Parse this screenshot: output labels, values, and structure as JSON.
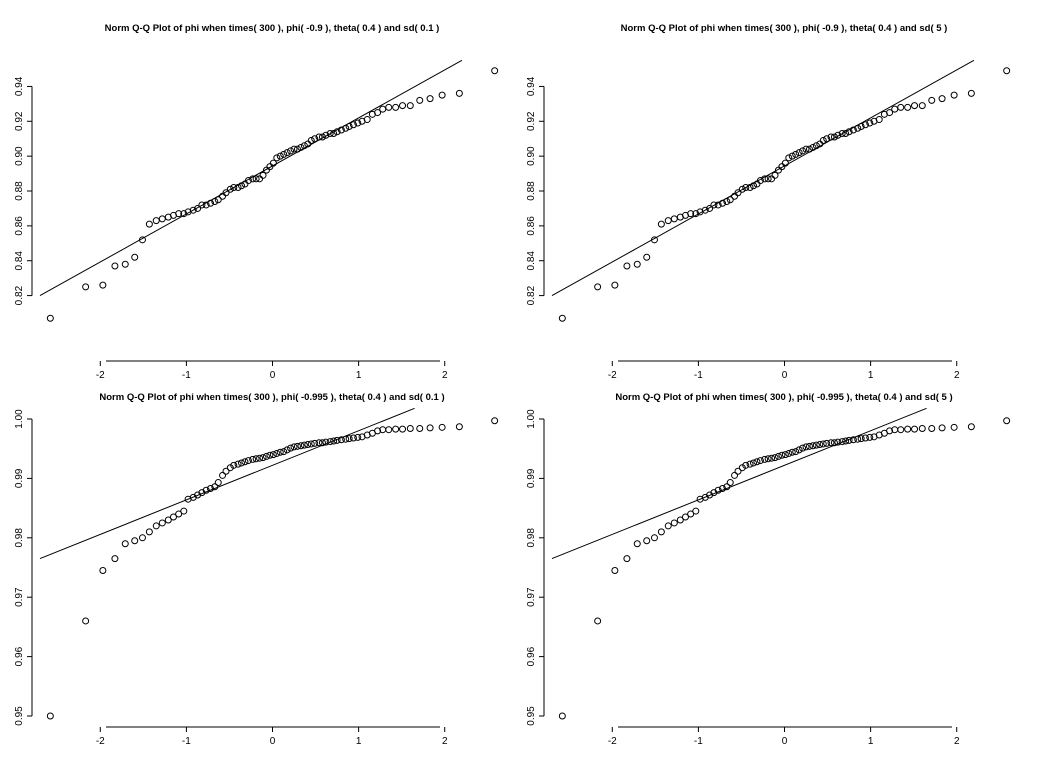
{
  "chart_data": [
    {
      "type": "scatter",
      "title": "Norm Q-Q Plot of phi when times( 300 ), phi( -0.9 ), theta( 0.4 ) and sd( 0.1 )",
      "xlabel": "",
      "ylabel": "",
      "xlim": [
        -2.7,
        2.7
      ],
      "ylim": [
        0.806,
        0.95
      ],
      "x_ticks": [
        -2,
        -1,
        0,
        1,
        2
      ],
      "y_ticks": [
        0.82,
        0.84,
        0.86,
        0.88,
        0.9,
        0.92,
        0.94
      ],
      "y_tick_labels": [
        "0.82",
        "0.84",
        "0.86",
        "0.88",
        "0.90",
        "0.92",
        "0.94"
      ],
      "reference_line": [
        [
          -2.7,
          0.82
        ],
        [
          2.2,
          0.955
        ]
      ],
      "points": [
        [
          -2.58,
          0.807
        ],
        [
          -2.17,
          0.825
        ],
        [
          -1.97,
          0.826
        ],
        [
          -1.83,
          0.837
        ],
        [
          -1.71,
          0.838
        ],
        [
          -1.6,
          0.842
        ],
        [
          -1.51,
          0.852
        ],
        [
          -1.43,
          0.861
        ],
        [
          -1.35,
          0.863
        ],
        [
          -1.28,
          0.864
        ],
        [
          -1.21,
          0.865
        ],
        [
          -1.15,
          0.866
        ],
        [
          -1.09,
          0.867
        ],
        [
          -1.03,
          0.867
        ],
        [
          -0.98,
          0.868
        ],
        [
          -0.92,
          0.869
        ],
        [
          -0.87,
          0.87
        ],
        [
          -0.82,
          0.872
        ],
        [
          -0.77,
          0.872
        ],
        [
          -0.72,
          0.873
        ],
        [
          -0.67,
          0.874
        ],
        [
          -0.63,
          0.875
        ],
        [
          -0.58,
          0.877
        ],
        [
          -0.54,
          0.879
        ],
        [
          -0.49,
          0.881
        ],
        [
          -0.45,
          0.882
        ],
        [
          -0.4,
          0.882
        ],
        [
          -0.36,
          0.883
        ],
        [
          -0.32,
          0.884
        ],
        [
          -0.28,
          0.886
        ],
        [
          -0.23,
          0.887
        ],
        [
          -0.19,
          0.887
        ],
        [
          -0.15,
          0.887
        ],
        [
          -0.11,
          0.889
        ],
        [
          -0.07,
          0.892
        ],
        [
          -0.03,
          0.894
        ],
        [
          0.01,
          0.896
        ],
        [
          0.05,
          0.899
        ],
        [
          0.09,
          0.9
        ],
        [
          0.13,
          0.901
        ],
        [
          0.17,
          0.902
        ],
        [
          0.21,
          0.903
        ],
        [
          0.25,
          0.904
        ],
        [
          0.29,
          0.904
        ],
        [
          0.33,
          0.905
        ],
        [
          0.37,
          0.906
        ],
        [
          0.41,
          0.907
        ],
        [
          0.45,
          0.909
        ],
        [
          0.49,
          0.91
        ],
        [
          0.54,
          0.911
        ],
        [
          0.58,
          0.911
        ],
        [
          0.62,
          0.912
        ],
        [
          0.67,
          0.913
        ],
        [
          0.71,
          0.913
        ],
        [
          0.75,
          0.914
        ],
        [
          0.8,
          0.915
        ],
        [
          0.85,
          0.916
        ],
        [
          0.89,
          0.917
        ],
        [
          0.94,
          0.918
        ],
        [
          0.99,
          0.919
        ],
        [
          1.04,
          0.92
        ],
        [
          1.1,
          0.921
        ],
        [
          1.16,
          0.924
        ],
        [
          1.22,
          0.925
        ],
        [
          1.28,
          0.927
        ],
        [
          1.35,
          0.928
        ],
        [
          1.43,
          0.928
        ],
        [
          1.51,
          0.929
        ],
        [
          1.6,
          0.929
        ],
        [
          1.71,
          0.932
        ],
        [
          1.83,
          0.933
        ],
        [
          1.97,
          0.935
        ],
        [
          2.17,
          0.936
        ],
        [
          2.58,
          0.949
        ]
      ]
    },
    {
      "type": "scatter",
      "title": "Norm Q-Q Plot of phi when times( 300 ), phi( -0.9 ), theta( 0.4 ) and sd( 5 )",
      "xlabel": "",
      "ylabel": "",
      "xlim": [
        -2.7,
        2.7
      ],
      "ylim": [
        0.806,
        0.95
      ],
      "x_ticks": [
        -2,
        -1,
        0,
        1,
        2
      ],
      "y_ticks": [
        0.82,
        0.84,
        0.86,
        0.88,
        0.9,
        0.92,
        0.94
      ],
      "y_tick_labels": [
        "0.82",
        "0.84",
        "0.86",
        "0.88",
        "0.90",
        "0.92",
        "0.94"
      ],
      "reference_line": [
        [
          -2.7,
          0.82
        ],
        [
          2.2,
          0.955
        ]
      ],
      "points": [
        [
          -2.58,
          0.807
        ],
        [
          -2.17,
          0.825
        ],
        [
          -1.97,
          0.826
        ],
        [
          -1.83,
          0.837
        ],
        [
          -1.71,
          0.838
        ],
        [
          -1.6,
          0.842
        ],
        [
          -1.51,
          0.852
        ],
        [
          -1.43,
          0.861
        ],
        [
          -1.35,
          0.863
        ],
        [
          -1.28,
          0.864
        ],
        [
          -1.21,
          0.865
        ],
        [
          -1.15,
          0.866
        ],
        [
          -1.09,
          0.867
        ],
        [
          -1.03,
          0.867
        ],
        [
          -0.98,
          0.868
        ],
        [
          -0.92,
          0.869
        ],
        [
          -0.87,
          0.87
        ],
        [
          -0.82,
          0.872
        ],
        [
          -0.77,
          0.872
        ],
        [
          -0.72,
          0.873
        ],
        [
          -0.67,
          0.874
        ],
        [
          -0.63,
          0.875
        ],
        [
          -0.58,
          0.877
        ],
        [
          -0.54,
          0.879
        ],
        [
          -0.49,
          0.881
        ],
        [
          -0.45,
          0.882
        ],
        [
          -0.4,
          0.882
        ],
        [
          -0.36,
          0.883
        ],
        [
          -0.32,
          0.884
        ],
        [
          -0.28,
          0.886
        ],
        [
          -0.23,
          0.887
        ],
        [
          -0.19,
          0.887
        ],
        [
          -0.15,
          0.887
        ],
        [
          -0.11,
          0.889
        ],
        [
          -0.07,
          0.892
        ],
        [
          -0.03,
          0.894
        ],
        [
          0.01,
          0.896
        ],
        [
          0.05,
          0.899
        ],
        [
          0.09,
          0.9
        ],
        [
          0.13,
          0.901
        ],
        [
          0.17,
          0.902
        ],
        [
          0.21,
          0.903
        ],
        [
          0.25,
          0.904
        ],
        [
          0.29,
          0.904
        ],
        [
          0.33,
          0.905
        ],
        [
          0.37,
          0.906
        ],
        [
          0.41,
          0.907
        ],
        [
          0.45,
          0.909
        ],
        [
          0.49,
          0.91
        ],
        [
          0.54,
          0.911
        ],
        [
          0.58,
          0.911
        ],
        [
          0.62,
          0.912
        ],
        [
          0.67,
          0.913
        ],
        [
          0.71,
          0.913
        ],
        [
          0.75,
          0.914
        ],
        [
          0.8,
          0.915
        ],
        [
          0.85,
          0.916
        ],
        [
          0.89,
          0.917
        ],
        [
          0.94,
          0.918
        ],
        [
          0.99,
          0.919
        ],
        [
          1.04,
          0.92
        ],
        [
          1.1,
          0.921
        ],
        [
          1.16,
          0.924
        ],
        [
          1.22,
          0.925
        ],
        [
          1.28,
          0.927
        ],
        [
          1.35,
          0.928
        ],
        [
          1.43,
          0.928
        ],
        [
          1.51,
          0.929
        ],
        [
          1.6,
          0.929
        ],
        [
          1.71,
          0.932
        ],
        [
          1.83,
          0.933
        ],
        [
          1.97,
          0.935
        ],
        [
          2.17,
          0.936
        ],
        [
          2.58,
          0.949
        ]
      ]
    },
    {
      "type": "scatter",
      "title": "Norm Q-Q Plot of phi when times( 300 ), phi( -0.995 ), theta( 0.4 ) and sd( 0.1 )",
      "xlabel": "",
      "ylabel": "",
      "xlim": [
        -2.7,
        2.7
      ],
      "ylim": [
        0.95,
        1.0
      ],
      "x_ticks": [
        -2,
        -1,
        0,
        1,
        2
      ],
      "y_ticks": [
        0.95,
        0.96,
        0.97,
        0.98,
        0.99,
        1.0
      ],
      "y_tick_labels": [
        "0.95",
        "0.96",
        "0.97",
        "0.98",
        "0.99",
        "1.00"
      ],
      "reference_line": [
        [
          -2.7,
          0.9765
        ],
        [
          1.65,
          1.0018
        ]
      ],
      "points": [
        [
          -2.58,
          0.95
        ],
        [
          -2.17,
          0.966
        ],
        [
          -1.97,
          0.9745
        ],
        [
          -1.83,
          0.9765
        ],
        [
          -1.71,
          0.979
        ],
        [
          -1.6,
          0.9795
        ],
        [
          -1.51,
          0.98
        ],
        [
          -1.43,
          0.981
        ],
        [
          -1.35,
          0.982
        ],
        [
          -1.28,
          0.9825
        ],
        [
          -1.21,
          0.983
        ],
        [
          -1.15,
          0.9835
        ],
        [
          -1.09,
          0.984
        ],
        [
          -1.03,
          0.9845
        ],
        [
          -0.98,
          0.9865
        ],
        [
          -0.92,
          0.9868
        ],
        [
          -0.87,
          0.9872
        ],
        [
          -0.82,
          0.9876
        ],
        [
          -0.77,
          0.988
        ],
        [
          -0.72,
          0.9883
        ],
        [
          -0.67,
          0.9886
        ],
        [
          -0.63,
          0.9893
        ],
        [
          -0.58,
          0.9905
        ],
        [
          -0.54,
          0.9912
        ],
        [
          -0.49,
          0.9918
        ],
        [
          -0.45,
          0.9922
        ],
        [
          -0.4,
          0.9924
        ],
        [
          -0.36,
          0.9926
        ],
        [
          -0.32,
          0.9928
        ],
        [
          -0.28,
          0.993
        ],
        [
          -0.23,
          0.9932
        ],
        [
          -0.19,
          0.9933
        ],
        [
          -0.15,
          0.9934
        ],
        [
          -0.11,
          0.9935
        ],
        [
          -0.07,
          0.9937
        ],
        [
          -0.03,
          0.9939
        ],
        [
          0.01,
          0.994
        ],
        [
          0.05,
          0.9942
        ],
        [
          0.09,
          0.9944
        ],
        [
          0.13,
          0.9945
        ],
        [
          0.17,
          0.9948
        ],
        [
          0.21,
          0.9951
        ],
        [
          0.25,
          0.9953
        ],
        [
          0.29,
          0.9954
        ],
        [
          0.33,
          0.9955
        ],
        [
          0.37,
          0.9956
        ],
        [
          0.41,
          0.9957
        ],
        [
          0.45,
          0.9958
        ],
        [
          0.49,
          0.9959
        ],
        [
          0.54,
          0.996
        ],
        [
          0.58,
          0.996
        ],
        [
          0.62,
          0.9961
        ],
        [
          0.67,
          0.9962
        ],
        [
          0.71,
          0.9963
        ],
        [
          0.75,
          0.9964
        ],
        [
          0.8,
          0.9965
        ],
        [
          0.85,
          0.9966
        ],
        [
          0.89,
          0.9967
        ],
        [
          0.94,
          0.9968
        ],
        [
          0.99,
          0.9969
        ],
        [
          1.04,
          0.997
        ],
        [
          1.1,
          0.9973
        ],
        [
          1.16,
          0.9976
        ],
        [
          1.22,
          0.998
        ],
        [
          1.28,
          0.9982
        ],
        [
          1.35,
          0.9982
        ],
        [
          1.43,
          0.9983
        ],
        [
          1.51,
          0.9983
        ],
        [
          1.6,
          0.9984
        ],
        [
          1.71,
          0.9984
        ],
        [
          1.83,
          0.9985
        ],
        [
          1.97,
          0.9986
        ],
        [
          2.17,
          0.9987
        ],
        [
          2.58,
          0.9997
        ]
      ]
    },
    {
      "type": "scatter",
      "title": "Norm Q-Q Plot of phi when times( 300 ), phi( -0.995 ), theta( 0.4 ) and sd( 5 )",
      "xlabel": "",
      "ylabel": "",
      "xlim": [
        -2.7,
        2.7
      ],
      "ylim": [
        0.95,
        1.0
      ],
      "x_ticks": [
        -2,
        -1,
        0,
        1,
        2
      ],
      "y_ticks": [
        0.95,
        0.96,
        0.97,
        0.98,
        0.99,
        1.0
      ],
      "y_tick_labels": [
        "0.95",
        "0.96",
        "0.97",
        "0.98",
        "0.99",
        "1.00"
      ],
      "reference_line": [
        [
          -2.7,
          0.9765
        ],
        [
          1.65,
          1.0018
        ]
      ],
      "points": [
        [
          -2.58,
          0.95
        ],
        [
          -2.17,
          0.966
        ],
        [
          -1.97,
          0.9745
        ],
        [
          -1.83,
          0.9765
        ],
        [
          -1.71,
          0.979
        ],
        [
          -1.6,
          0.9795
        ],
        [
          -1.51,
          0.98
        ],
        [
          -1.43,
          0.981
        ],
        [
          -1.35,
          0.982
        ],
        [
          -1.28,
          0.9825
        ],
        [
          -1.21,
          0.983
        ],
        [
          -1.15,
          0.9835
        ],
        [
          -1.09,
          0.984
        ],
        [
          -1.03,
          0.9845
        ],
        [
          -0.98,
          0.9865
        ],
        [
          -0.92,
          0.9868
        ],
        [
          -0.87,
          0.9872
        ],
        [
          -0.82,
          0.9876
        ],
        [
          -0.77,
          0.988
        ],
        [
          -0.72,
          0.9883
        ],
        [
          -0.67,
          0.9886
        ],
        [
          -0.63,
          0.9893
        ],
        [
          -0.58,
          0.9905
        ],
        [
          -0.54,
          0.9912
        ],
        [
          -0.49,
          0.9918
        ],
        [
          -0.45,
          0.9922
        ],
        [
          -0.4,
          0.9924
        ],
        [
          -0.36,
          0.9926
        ],
        [
          -0.32,
          0.9928
        ],
        [
          -0.28,
          0.993
        ],
        [
          -0.23,
          0.9932
        ],
        [
          -0.19,
          0.9933
        ],
        [
          -0.15,
          0.9934
        ],
        [
          -0.11,
          0.9935
        ],
        [
          -0.07,
          0.9937
        ],
        [
          -0.03,
          0.9939
        ],
        [
          0.01,
          0.994
        ],
        [
          0.05,
          0.9942
        ],
        [
          0.09,
          0.9944
        ],
        [
          0.13,
          0.9945
        ],
        [
          0.17,
          0.9948
        ],
        [
          0.21,
          0.9951
        ],
        [
          0.25,
          0.9953
        ],
        [
          0.29,
          0.9954
        ],
        [
          0.33,
          0.9955
        ],
        [
          0.37,
          0.9956
        ],
        [
          0.41,
          0.9957
        ],
        [
          0.45,
          0.9958
        ],
        [
          0.49,
          0.9959
        ],
        [
          0.54,
          0.996
        ],
        [
          0.58,
          0.996
        ],
        [
          0.62,
          0.9961
        ],
        [
          0.67,
          0.9962
        ],
        [
          0.71,
          0.9963
        ],
        [
          0.75,
          0.9964
        ],
        [
          0.8,
          0.9965
        ],
        [
          0.85,
          0.9966
        ],
        [
          0.89,
          0.9967
        ],
        [
          0.94,
          0.9968
        ],
        [
          0.99,
          0.9969
        ],
        [
          1.04,
          0.997
        ],
        [
          1.1,
          0.9973
        ],
        [
          1.16,
          0.9976
        ],
        [
          1.22,
          0.998
        ],
        [
          1.28,
          0.9982
        ],
        [
          1.35,
          0.9982
        ],
        [
          1.43,
          0.9983
        ],
        [
          1.51,
          0.9983
        ],
        [
          1.6,
          0.9984
        ],
        [
          1.71,
          0.9984
        ],
        [
          1.83,
          0.9985
        ],
        [
          1.97,
          0.9986
        ],
        [
          2.17,
          0.9987
        ],
        [
          2.58,
          0.9997
        ]
      ]
    }
  ]
}
